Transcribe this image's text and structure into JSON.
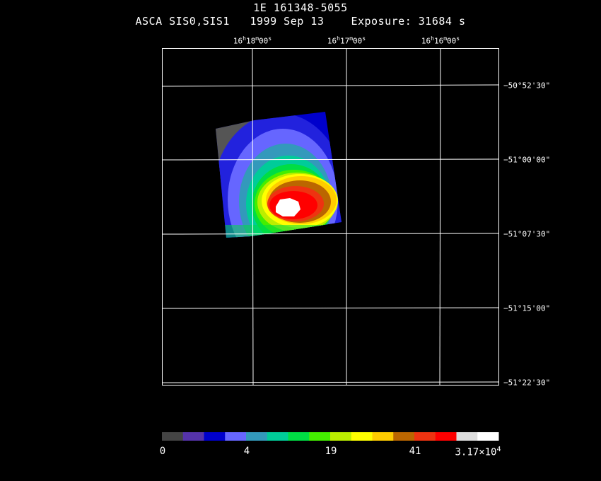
{
  "header": {
    "target": "1E 161348-5055",
    "subtitle": "ASCA SIS0,SIS1   1999 Sep 13    Exposure: 31684 s"
  },
  "ra_axis": [
    {
      "h": "16",
      "m": "18",
      "s": "00"
    },
    {
      "h": "16",
      "m": "17",
      "s": "00"
    },
    {
      "h": "16",
      "m": "16",
      "s": "00"
    }
  ],
  "dec_axis": [
    "−50°52'30\"",
    "−51°00'00\"",
    "−51°07'30\"",
    "−51°15'00\"",
    "−51°22'30\""
  ],
  "colorbar": {
    "colors": [
      "#444444",
      "#5533aa",
      "#0000cc",
      "#6666ff",
      "#3399bb",
      "#00cc99",
      "#00dd44",
      "#44ee00",
      "#bbee00",
      "#ffff00",
      "#ffcc00",
      "#bb6600",
      "#ee3311",
      "#ff0000",
      "#dddddd",
      "#ffffff"
    ],
    "labels": [
      "0",
      "4",
      "19",
      "41"
    ],
    "max_label": {
      "mantissa": "3.17×10",
      "exponent": "4"
    }
  }
}
